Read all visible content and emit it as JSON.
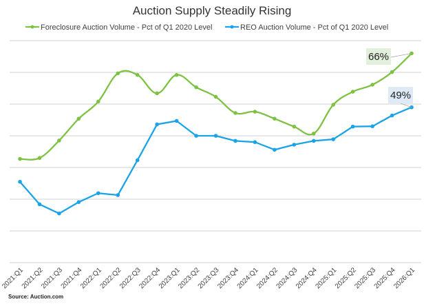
{
  "chart_data": {
    "type": "line",
    "title": "Auction Supply Steadily Rising",
    "xlabel": "",
    "ylabel": "",
    "ylim": [
      0,
      70
    ],
    "grid": true,
    "grid_step": 10,
    "y_tick_labels_shown": false,
    "legend_position": "top",
    "source": "Source: Auction.com",
    "categories": [
      "2021:Q1",
      "2021:Q2",
      "2021:Q3",
      "2021:Q4",
      "2022:Q1",
      "2022:Q2",
      "2022:Q3",
      "2022:Q4",
      "2023:Q1",
      "2023:Q2",
      "2023:Q3",
      "2023:Q4",
      "2024:Q1",
      "2024:Q2",
      "2024:Q3",
      "2024:Q4",
      "2025:Q1",
      "2025:Q2",
      "2025:Q3",
      "2025:Q4",
      "2026:Q1"
    ],
    "series": [
      {
        "name": "Foreclosure Auction Volume - Pct of Q1 2020 Level",
        "color": "#7dc242",
        "smooth": true,
        "values": [
          32.7,
          33.0,
          38.5,
          45.4,
          50.8,
          59.7,
          59.2,
          53.4,
          59.2,
          55.3,
          52.3,
          47.2,
          47.6,
          45.4,
          42.9,
          40.7,
          49.8,
          53.9,
          56.1,
          60.1,
          66.0
        ],
        "end_label": "66%",
        "end_label_bg": "#e2efda"
      },
      {
        "name": "REO Auction Volume - Pct of Q1 2020 Level",
        "color": "#1aa3e8",
        "smooth": false,
        "values": [
          25.5,
          18.4,
          15.5,
          19.1,
          21.9,
          21.3,
          32.3,
          43.6,
          44.7,
          40.0,
          40.0,
          38.4,
          38.0,
          35.6,
          37.2,
          38.4,
          38.9,
          42.9,
          43.0,
          46.4,
          49.0
        ],
        "end_label": "49%",
        "end_label_bg": "#deebf7"
      }
    ]
  }
}
